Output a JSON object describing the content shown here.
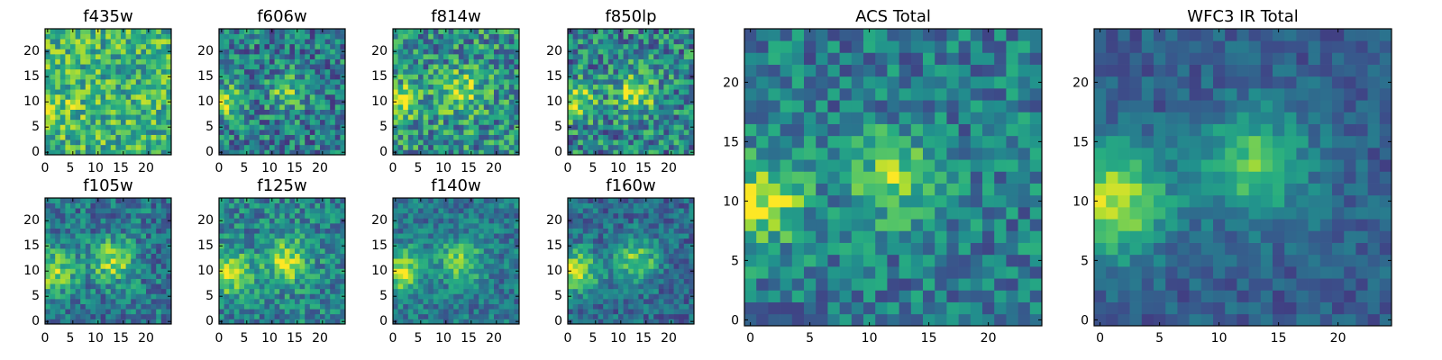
{
  "chart_data": [
    {
      "type": "heatmap",
      "title": "f435w",
      "seed": 11,
      "blobs": [
        {
          "x": 2,
          "y": 9,
          "sigma": 3,
          "amp": 0.15
        }
      ],
      "base": 0.72,
      "noise": 0.3,
      "contrast": 0.9,
      "xlim": [
        -0.5,
        24.5
      ],
      "ylim": [
        -0.5,
        24.5
      ],
      "xticks": [
        0,
        5,
        10,
        15,
        20
      ],
      "yticks": [
        0,
        5,
        10,
        15,
        20
      ],
      "xtick_labels": [
        "0",
        "5",
        "10",
        "15",
        "20"
      ],
      "ytick_labels": [
        "0",
        "5",
        "10",
        "15",
        "20"
      ]
    },
    {
      "type": "heatmap",
      "title": "f606w",
      "seed": 23,
      "blobs": [
        {
          "x": 1,
          "y": 10,
          "sigma": 2.5,
          "amp": 0.45
        },
        {
          "x": 13,
          "y": 12,
          "sigma": 2.5,
          "amp": 0.35
        }
      ],
      "base": 0.42,
      "noise": 0.28,
      "contrast": 1.0,
      "xlim": [
        -0.5,
        24.5
      ],
      "ylim": [
        -0.5,
        24.5
      ],
      "xticks": [
        0,
        5,
        10,
        15,
        20
      ],
      "yticks": [
        0,
        5,
        10,
        15,
        20
      ],
      "xtick_labels": [
        "0",
        "5",
        "10",
        "15",
        "20"
      ],
      "ytick_labels": [
        "0",
        "5",
        "10",
        "15",
        "20"
      ]
    },
    {
      "type": "heatmap",
      "title": "f814w",
      "seed": 37,
      "blobs": [
        {
          "x": 1,
          "y": 10,
          "sigma": 2.5,
          "amp": 0.4
        },
        {
          "x": 13,
          "y": 12,
          "sigma": 3,
          "amp": 0.35
        }
      ],
      "base": 0.5,
      "noise": 0.3,
      "contrast": 1.0,
      "xlim": [
        -0.5,
        24.5
      ],
      "ylim": [
        -0.5,
        24.5
      ],
      "xticks": [
        0,
        5,
        10,
        15,
        20
      ],
      "yticks": [
        0,
        5,
        10,
        15,
        20
      ],
      "xtick_labels": [
        "0",
        "5",
        "10",
        "15",
        "20"
      ],
      "ytick_labels": [
        "0",
        "5",
        "10",
        "15",
        "20"
      ]
    },
    {
      "type": "heatmap",
      "title": "f850lp",
      "seed": 41,
      "blobs": [
        {
          "x": 1,
          "y": 10,
          "sigma": 2.5,
          "amp": 0.45
        },
        {
          "x": 13,
          "y": 12,
          "sigma": 3,
          "amp": 0.4
        }
      ],
      "base": 0.45,
      "noise": 0.3,
      "contrast": 1.0,
      "xlim": [
        -0.5,
        24.5
      ],
      "ylim": [
        -0.5,
        24.5
      ],
      "xticks": [
        0,
        5,
        10,
        15,
        20
      ],
      "yticks": [
        0,
        5,
        10,
        15,
        20
      ],
      "xtick_labels": [
        "0",
        "5",
        "10",
        "15",
        "20"
      ],
      "ytick_labels": [
        "0",
        "5",
        "10",
        "15",
        "20"
      ]
    },
    {
      "type": "heatmap",
      "title": "f105w",
      "seed": 53,
      "blobs": [
        {
          "x": 1,
          "y": 10,
          "sigma": 3,
          "amp": 0.45
        },
        {
          "x": 13,
          "y": 12,
          "sigma": 3,
          "amp": 0.45
        }
      ],
      "base": 0.4,
      "noise": 0.22,
      "contrast": 1.0,
      "xlim": [
        -0.5,
        24.5
      ],
      "ylim": [
        -0.5,
        24.5
      ],
      "xticks": [
        0,
        5,
        10,
        15,
        20
      ],
      "yticks": [
        0,
        5,
        10,
        15,
        20
      ],
      "xtick_labels": [
        "0",
        "5",
        "10",
        "15",
        "20"
      ],
      "ytick_labels": [
        "0",
        "5",
        "10",
        "15",
        "20"
      ]
    },
    {
      "type": "heatmap",
      "title": "f125w",
      "seed": 67,
      "blobs": [
        {
          "x": 1,
          "y": 10,
          "sigma": 3,
          "amp": 0.5
        },
        {
          "x": 13,
          "y": 12,
          "sigma": 3,
          "amp": 0.45
        }
      ],
      "base": 0.45,
      "noise": 0.22,
      "contrast": 1.0,
      "xlim": [
        -0.5,
        24.5
      ],
      "ylim": [
        -0.5,
        24.5
      ],
      "xticks": [
        0,
        5,
        10,
        15,
        20
      ],
      "yticks": [
        0,
        5,
        10,
        15,
        20
      ],
      "xtick_labels": [
        "0",
        "5",
        "10",
        "15",
        "20"
      ],
      "ytick_labels": [
        "0",
        "5",
        "10",
        "15",
        "20"
      ]
    },
    {
      "type": "heatmap",
      "title": "f140w",
      "seed": 71,
      "blobs": [
        {
          "x": 1,
          "y": 10,
          "sigma": 3,
          "amp": 0.5
        },
        {
          "x": 13,
          "y": 12,
          "sigma": 3,
          "amp": 0.4
        }
      ],
      "base": 0.4,
      "noise": 0.18,
      "contrast": 1.0,
      "xlim": [
        -0.5,
        24.5
      ],
      "ylim": [
        -0.5,
        24.5
      ],
      "xticks": [
        0,
        5,
        10,
        15,
        20
      ],
      "yticks": [
        0,
        5,
        10,
        15,
        20
      ],
      "xtick_labels": [
        "0",
        "5",
        "10",
        "15",
        "20"
      ],
      "ytick_labels": [
        "0",
        "5",
        "10",
        "15",
        "20"
      ]
    },
    {
      "type": "heatmap",
      "title": "f160w",
      "seed": 83,
      "blobs": [
        {
          "x": 1,
          "y": 10,
          "sigma": 3,
          "amp": 0.55
        },
        {
          "x": 13,
          "y": 12,
          "sigma": 3,
          "amp": 0.45
        }
      ],
      "base": 0.35,
      "noise": 0.18,
      "contrast": 1.0,
      "xlim": [
        -0.5,
        24.5
      ],
      "ylim": [
        -0.5,
        24.5
      ],
      "xticks": [
        0,
        5,
        10,
        15,
        20
      ],
      "yticks": [
        0,
        5,
        10,
        15,
        20
      ],
      "xtick_labels": [
        "0",
        "5",
        "10",
        "15",
        "20"
      ],
      "ytick_labels": [
        "0",
        "5",
        "10",
        "15",
        "20"
      ]
    },
    {
      "type": "heatmap",
      "title": "ACS Total",
      "seed": 97,
      "blobs": [
        {
          "x": 1,
          "y": 10,
          "sigma": 2.5,
          "amp": 0.5
        },
        {
          "x": 12,
          "y": 12,
          "sigma": 2.5,
          "amp": 0.4
        }
      ],
      "base": 0.42,
      "noise": 0.22,
      "contrast": 1.0,
      "xlim": [
        -0.5,
        24.5
      ],
      "ylim": [
        -0.5,
        24.5
      ],
      "xticks": [
        0,
        5,
        10,
        15,
        20
      ],
      "yticks": [
        0,
        5,
        10,
        15,
        20
      ],
      "xtick_labels": [
        "0",
        "5",
        "10",
        "15",
        "20"
      ],
      "ytick_labels": [
        "0",
        "5",
        "10",
        "15",
        "20"
      ]
    },
    {
      "type": "heatmap",
      "title": "WFC3 IR Total",
      "seed": 109,
      "blobs": [
        {
          "x": 1,
          "y": 10,
          "sigma": 3.2,
          "amp": 0.6
        },
        {
          "x": 13,
          "y": 13,
          "sigma": 3.2,
          "amp": 0.45
        }
      ],
      "base": 0.3,
      "noise": 0.12,
      "contrast": 1.0,
      "xlim": [
        -0.5,
        24.5
      ],
      "ylim": [
        -0.5,
        24.5
      ],
      "xticks": [
        0,
        5,
        10,
        15,
        20
      ],
      "yticks": [
        0,
        5,
        10,
        15,
        20
      ],
      "xtick_labels": [
        "0",
        "5",
        "10",
        "15",
        "20"
      ],
      "ytick_labels": [
        "0",
        "5",
        "10",
        "15",
        "20"
      ]
    }
  ],
  "colormap": "viridis",
  "colormap_stops": [
    "#440154",
    "#472c7a",
    "#3b518b",
    "#2c718e",
    "#21908d",
    "#27ad81",
    "#5cc863",
    "#aadc32",
    "#fde725"
  ],
  "grid_size": 25
}
